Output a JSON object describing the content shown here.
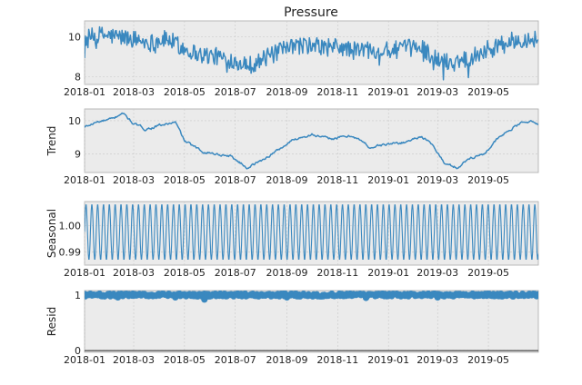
{
  "chart_data": [
    {
      "type": "line",
      "panel": "observed",
      "title": "Pressure",
      "ylabel": "",
      "ylim": [
        7.6,
        10.8
      ],
      "yticks": [
        8,
        10
      ],
      "xlim": [
        "2018-01-01",
        "2019-06-30"
      ],
      "x_tick_labels": [
        "2018-01",
        "2018-03",
        "2018-05",
        "2018-07",
        "2018-09",
        "2018-11",
        "2019-01",
        "2019-03",
        "2019-05"
      ],
      "anchors": [
        [
          "2018-01-01",
          9.9
        ],
        [
          "2018-01-20",
          10.1
        ],
        [
          "2018-02-10",
          10.0
        ],
        [
          "2018-03-01",
          9.9
        ],
        [
          "2018-03-20",
          9.7
        ],
        [
          "2018-04-10",
          9.9
        ],
        [
          "2018-05-01",
          9.4
        ],
        [
          "2018-05-20",
          9.1
        ],
        [
          "2018-06-10",
          9.0
        ],
        [
          "2018-07-01",
          8.8
        ],
        [
          "2018-07-20",
          8.6
        ],
        [
          "2018-08-10",
          9.0
        ],
        [
          "2018-09-01",
          9.4
        ],
        [
          "2018-09-20",
          9.6
        ],
        [
          "2018-10-10",
          9.5
        ],
        [
          "2018-11-01",
          9.5
        ],
        [
          "2018-11-20",
          9.3
        ],
        [
          "2018-12-10",
          9.4
        ],
        [
          "2019-01-01",
          9.3
        ],
        [
          "2019-01-20",
          9.4
        ],
        [
          "2019-02-10",
          9.5
        ],
        [
          "2019-03-01",
          8.8
        ],
        [
          "2019-03-20",
          8.7
        ],
        [
          "2019-04-10",
          9.0
        ],
        [
          "2019-05-01",
          9.4
        ],
        [
          "2019-05-20",
          9.7
        ],
        [
          "2019-06-10",
          9.9
        ],
        [
          "2019-06-30",
          9.9
        ]
      ],
      "noise_amplitude": 0.45
    },
    {
      "type": "line",
      "panel": "trend",
      "ylabel": "Trend",
      "ylim": [
        8.45,
        10.35
      ],
      "yticks": [
        9,
        10
      ],
      "xlim": [
        "2018-01-01",
        "2019-06-30"
      ],
      "x_tick_labels": [
        "2018-01",
        "2018-03",
        "2018-05",
        "2018-07",
        "2018-09",
        "2018-11",
        "2019-01",
        "2019-03",
        "2019-05"
      ],
      "anchors": [
        [
          "2018-01-01",
          9.8
        ],
        [
          "2018-01-15",
          9.95
        ],
        [
          "2018-02-05",
          10.05
        ],
        [
          "2018-02-15",
          10.25
        ],
        [
          "2018-03-01",
          9.9
        ],
        [
          "2018-03-15",
          9.75
        ],
        [
          "2018-04-01",
          9.85
        ],
        [
          "2018-04-20",
          9.95
        ],
        [
          "2018-05-01",
          9.4
        ],
        [
          "2018-05-20",
          9.1
        ],
        [
          "2018-06-10",
          9.0
        ],
        [
          "2018-06-25",
          8.95
        ],
        [
          "2018-07-15",
          8.6
        ],
        [
          "2018-08-01",
          8.8
        ],
        [
          "2018-08-20",
          9.1
        ],
        [
          "2018-09-10",
          9.45
        ],
        [
          "2018-10-01",
          9.6
        ],
        [
          "2018-10-20",
          9.45
        ],
        [
          "2018-11-05",
          9.5
        ],
        [
          "2018-11-20",
          9.55
        ],
        [
          "2018-12-10",
          9.2
        ],
        [
          "2019-01-01",
          9.3
        ],
        [
          "2019-01-20",
          9.35
        ],
        [
          "2019-02-10",
          9.55
        ],
        [
          "2019-02-25",
          9.2
        ],
        [
          "2019-03-10",
          8.7
        ],
        [
          "2019-03-25",
          8.6
        ],
        [
          "2019-04-10",
          8.9
        ],
        [
          "2019-04-25",
          9.0
        ],
        [
          "2019-05-10",
          9.4
        ],
        [
          "2019-05-25",
          9.7
        ],
        [
          "2019-06-15",
          10.0
        ],
        [
          "2019-06-30",
          9.9
        ]
      ],
      "noise_amplitude": 0.06
    },
    {
      "type": "line",
      "panel": "seasonal",
      "ylabel": "Seasonal",
      "ylim": [
        0.985,
        1.009
      ],
      "yticks": [
        0.99,
        1.0
      ],
      "ytick_labels": [
        "0.99",
        "1.00"
      ],
      "xlim": [
        "2018-01-01",
        "2019-06-30"
      ],
      "x_tick_labels": [
        "2018-01",
        "2018-03",
        "2018-05",
        "2018-07",
        "2018-09",
        "2018-11",
        "2019-01",
        "2019-03",
        "2019-05"
      ],
      "period_days": 7,
      "max": 1.008,
      "min": 0.987
    },
    {
      "type": "scatter",
      "panel": "resid",
      "ylabel": "Resid",
      "ylim": [
        -0.03,
        1.08
      ],
      "yticks": [
        0,
        1
      ],
      "xlim": [
        "2018-01-01",
        "2019-06-30"
      ],
      "x_tick_labels": [
        "2018-01",
        "2018-03",
        "2018-05",
        "2018-07",
        "2018-09",
        "2018-11",
        "2019-01",
        "2019-03",
        "2019-05"
      ],
      "center": 1.0,
      "spread": 0.03,
      "outliers": [
        [
          "2018-05-25",
          0.92
        ],
        [
          "2018-04-20",
          0.96
        ],
        [
          "2018-09-01",
          0.96
        ],
        [
          "2018-12-05",
          0.95
        ],
        [
          "2019-03-01",
          0.96
        ],
        [
          "2018-02-10",
          0.96
        ]
      ]
    }
  ]
}
